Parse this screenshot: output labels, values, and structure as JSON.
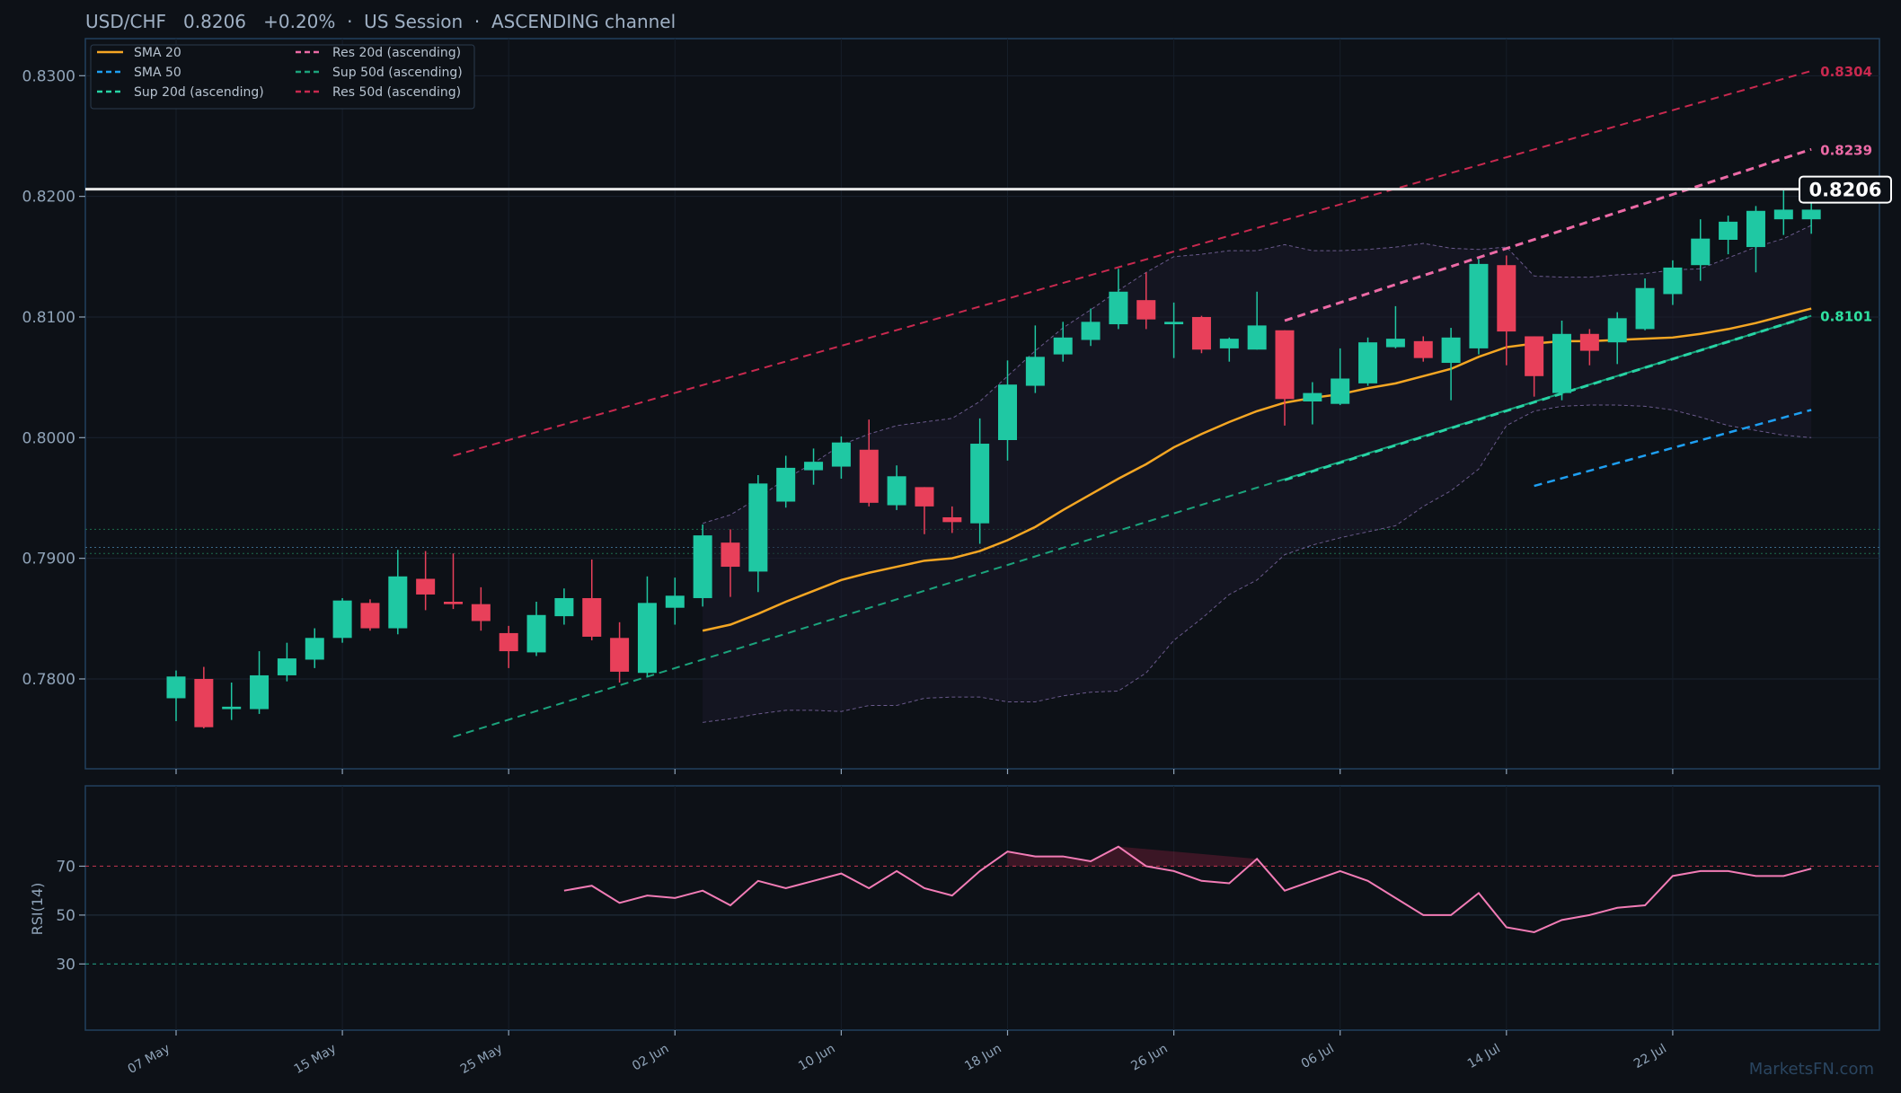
{
  "header": {
    "title": "USD/CHF   0.8206   +0.20%  ·  US Session  ·  ASCENDING channel"
  },
  "watermark": "MarketsFN.com",
  "colors": {
    "background": "#0d1117",
    "up": "#1fc8a3",
    "down": "#e8405a",
    "sma20": "#f5a623",
    "sma50": "#1e9ff2",
    "sup20": "#27d4a5",
    "res20": "#ec6aa6",
    "sup50": "#1ba37c",
    "res50": "#c8294f",
    "rsi": "#f27cb6",
    "bollinger": "#6a5a8c"
  },
  "legend": [
    {
      "label": "SMA 20",
      "style": "solid",
      "color": "#f5a623"
    },
    {
      "label": "SMA 50",
      "style": "dashed",
      "color": "#1e9ff2"
    },
    {
      "label": "Sup 20d (ascending)",
      "style": "dashed",
      "color": "#27d4a5"
    },
    {
      "label": "Res 20d (ascending)",
      "style": "dashed",
      "color": "#ec6aa6"
    },
    {
      "label": "Sup 50d (ascending)",
      "style": "dashed",
      "color": "#1ba37c"
    },
    {
      "label": "Res 50d (ascending)",
      "style": "dashed",
      "color": "#c8294f"
    }
  ],
  "chart_data": {
    "type": "candlestick",
    "symbol": "USD/CHF",
    "last_price": "0.8206",
    "change": "+0.20%",
    "x_tick_labels": [
      "07 May",
      "15 May",
      "25 May",
      "02 Jun",
      "10 Jun",
      "18 Jun",
      "26 Jun",
      "06 Jul",
      "14 Jul",
      "22 Jul"
    ],
    "y_tick_labels": [
      "0.7800",
      "0.7900",
      "0.8000",
      "0.8100",
      "0.8200",
      "0.8300"
    ],
    "ylim": [
      0.7727,
      0.8347
    ],
    "candles": [
      {
        "o": 0.7784,
        "h": 0.7807,
        "l": 0.7765,
        "c": 0.7802
      },
      {
        "o": 0.78,
        "h": 0.781,
        "l": 0.7759,
        "c": 0.776
      },
      {
        "o": 0.7775,
        "h": 0.7797,
        "l": 0.7766,
        "c": 0.7777
      },
      {
        "o": 0.7775,
        "h": 0.7823,
        "l": 0.7771,
        "c": 0.7803
      },
      {
        "o": 0.7803,
        "h": 0.783,
        "l": 0.7798,
        "c": 0.7817
      },
      {
        "o": 0.7816,
        "h": 0.7842,
        "l": 0.7809,
        "c": 0.7834
      },
      {
        "o": 0.7834,
        "h": 0.7867,
        "l": 0.783,
        "c": 0.7865
      },
      {
        "o": 0.7863,
        "h": 0.7866,
        "l": 0.784,
        "c": 0.7842
      },
      {
        "o": 0.7842,
        "h": 0.7907,
        "l": 0.7837,
        "c": 0.7885
      },
      {
        "o": 0.7883,
        "h": 0.7906,
        "l": 0.7857,
        "c": 0.787
      },
      {
        "o": 0.7864,
        "h": 0.7904,
        "l": 0.7858,
        "c": 0.7862
      },
      {
        "o": 0.7862,
        "h": 0.7876,
        "l": 0.784,
        "c": 0.7848
      },
      {
        "o": 0.7838,
        "h": 0.7844,
        "l": 0.7809,
        "c": 0.7823
      },
      {
        "o": 0.7822,
        "h": 0.7864,
        "l": 0.7819,
        "c": 0.7853
      },
      {
        "o": 0.7852,
        "h": 0.7875,
        "l": 0.7845,
        "c": 0.7867
      },
      {
        "o": 0.7867,
        "h": 0.7899,
        "l": 0.7832,
        "c": 0.7835
      },
      {
        "o": 0.7834,
        "h": 0.7847,
        "l": 0.7797,
        "c": 0.7806
      },
      {
        "o": 0.7805,
        "h": 0.7885,
        "l": 0.7802,
        "c": 0.7863
      },
      {
        "o": 0.7859,
        "h": 0.7884,
        "l": 0.7845,
        "c": 0.7869
      },
      {
        "o": 0.7867,
        "h": 0.7928,
        "l": 0.786,
        "c": 0.7919
      },
      {
        "o": 0.7913,
        "h": 0.7924,
        "l": 0.7868,
        "c": 0.7893
      },
      {
        "o": 0.7889,
        "h": 0.7969,
        "l": 0.7872,
        "c": 0.7962
      },
      {
        "o": 0.7947,
        "h": 0.7985,
        "l": 0.7942,
        "c": 0.7975
      },
      {
        "o": 0.7973,
        "h": 0.7991,
        "l": 0.7961,
        "c": 0.798
      },
      {
        "o": 0.7976,
        "h": 0.8001,
        "l": 0.7966,
        "c": 0.7996
      },
      {
        "o": 0.799,
        "h": 0.8015,
        "l": 0.7943,
        "c": 0.7946
      },
      {
        "o": 0.7944,
        "h": 0.7977,
        "l": 0.794,
        "c": 0.7968
      },
      {
        "o": 0.7959,
        "h": 0.7959,
        "l": 0.792,
        "c": 0.7943
      },
      {
        "o": 0.7934,
        "h": 0.7943,
        "l": 0.7921,
        "c": 0.793
      },
      {
        "o": 0.7929,
        "h": 0.8016,
        "l": 0.7912,
        "c": 0.7995
      },
      {
        "o": 0.7998,
        "h": 0.8064,
        "l": 0.7981,
        "c": 0.8044
      },
      {
        "o": 0.8043,
        "h": 0.8093,
        "l": 0.8037,
        "c": 0.8067
      },
      {
        "o": 0.8069,
        "h": 0.8096,
        "l": 0.8063,
        "c": 0.8083
      },
      {
        "o": 0.8081,
        "h": 0.8107,
        "l": 0.8076,
        "c": 0.8096
      },
      {
        "o": 0.8094,
        "h": 0.814,
        "l": 0.809,
        "c": 0.8121
      },
      {
        "o": 0.8114,
        "h": 0.8137,
        "l": 0.809,
        "c": 0.8098
      },
      {
        "o": 0.8094,
        "h": 0.8112,
        "l": 0.8066,
        "c": 0.8096
      },
      {
        "o": 0.81,
        "h": 0.8101,
        "l": 0.807,
        "c": 0.8073
      },
      {
        "o": 0.8074,
        "h": 0.8083,
        "l": 0.8063,
        "c": 0.8082
      },
      {
        "o": 0.8073,
        "h": 0.8121,
        "l": 0.8073,
        "c": 0.8093
      },
      {
        "o": 0.8089,
        "h": 0.8089,
        "l": 0.801,
        "c": 0.8032
      },
      {
        "o": 0.803,
        "h": 0.8046,
        "l": 0.8011,
        "c": 0.8037
      },
      {
        "o": 0.8028,
        "h": 0.8074,
        "l": 0.8027,
        "c": 0.8049
      },
      {
        "o": 0.8045,
        "h": 0.8083,
        "l": 0.8043,
        "c": 0.8079
      },
      {
        "o": 0.8075,
        "h": 0.8109,
        "l": 0.8074,
        "c": 0.8082
      },
      {
        "o": 0.808,
        "h": 0.8084,
        "l": 0.8063,
        "c": 0.8066
      },
      {
        "o": 0.8062,
        "h": 0.8091,
        "l": 0.8031,
        "c": 0.8083
      },
      {
        "o": 0.8074,
        "h": 0.8148,
        "l": 0.8069,
        "c": 0.8144
      },
      {
        "o": 0.8143,
        "h": 0.8151,
        "l": 0.806,
        "c": 0.8088
      },
      {
        "o": 0.8084,
        "h": 0.8084,
        "l": 0.8034,
        "c": 0.8051
      },
      {
        "o": 0.8037,
        "h": 0.8097,
        "l": 0.8031,
        "c": 0.8086
      },
      {
        "o": 0.8086,
        "h": 0.809,
        "l": 0.806,
        "c": 0.8072
      },
      {
        "o": 0.8079,
        "h": 0.8104,
        "l": 0.8061,
        "c": 0.8099
      },
      {
        "o": 0.809,
        "h": 0.8132,
        "l": 0.8089,
        "c": 0.8124
      },
      {
        "o": 0.8119,
        "h": 0.8147,
        "l": 0.811,
        "c": 0.8141
      },
      {
        "o": 0.8143,
        "h": 0.8181,
        "l": 0.813,
        "c": 0.8165
      },
      {
        "o": 0.8164,
        "h": 0.8184,
        "l": 0.8152,
        "c": 0.8179
      },
      {
        "o": 0.8158,
        "h": 0.8192,
        "l": 0.8137,
        "c": 0.8188
      },
      {
        "o": 0.8181,
        "h": 0.8205,
        "l": 0.8168,
        "c": 0.8189
      },
      {
        "o": 0.8181,
        "h": 0.8198,
        "l": 0.8169,
        "c": 0.8189
      }
    ],
    "sma20": {
      "start": 19,
      "values": [
        0.784,
        0.7845,
        0.7854,
        0.7864,
        0.7873,
        0.7882,
        0.7888,
        0.7893,
        0.7898,
        0.79,
        0.7906,
        0.7915,
        0.7926,
        0.794,
        0.7953,
        0.7966,
        0.7978,
        0.7992,
        0.8003,
        0.8013,
        0.8022,
        0.8029,
        0.8033,
        0.8036,
        0.8041,
        0.8045,
        0.8051,
        0.8057,
        0.8067,
        0.8075,
        0.8078,
        0.808,
        0.808,
        0.8081,
        0.8082,
        0.8083,
        0.8086,
        0.809,
        0.8095,
        0.8101,
        0.8107
      ]
    },
    "sma50": {
      "start": 49,
      "values": [
        0.796,
        0.8023
      ]
    },
    "bollinger": {
      "start": 19,
      "upper": [
        0.7929,
        0.7936,
        0.795,
        0.7966,
        0.7979,
        0.7994,
        0.8003,
        0.801,
        0.8013,
        0.8016,
        0.803,
        0.8051,
        0.8072,
        0.8091,
        0.8106,
        0.8122,
        0.8137,
        0.815,
        0.8152,
        0.8155,
        0.8155,
        0.816,
        0.8155,
        0.8155,
        0.8156,
        0.8158,
        0.8161,
        0.8157,
        0.8156,
        0.8158,
        0.8134,
        0.8133,
        0.8133,
        0.8135,
        0.8136,
        0.8139,
        0.814,
        0.8149,
        0.8158,
        0.8165,
        0.8176
      ],
      "lower": [
        0.7764,
        0.7767,
        0.7771,
        0.7774,
        0.7774,
        0.7773,
        0.7778,
        0.7778,
        0.7784,
        0.7785,
        0.7785,
        0.7781,
        0.7781,
        0.7786,
        0.7789,
        0.779,
        0.7805,
        0.7832,
        0.785,
        0.787,
        0.7882,
        0.7903,
        0.7911,
        0.7917,
        0.7922,
        0.7927,
        0.7943,
        0.7956,
        0.7974,
        0.801,
        0.8022,
        0.8026,
        0.8027,
        0.8027,
        0.8026,
        0.8023,
        0.8017,
        0.801,
        0.8006,
        0.8002,
        0.8
      ]
    },
    "levels": [
      {
        "name": "Res 50d (ascending)",
        "from": [
          10,
          0.7985
        ],
        "to": [
          59,
          0.8304
        ],
        "label": "0.8304"
      },
      {
        "name": "Sup 50d (ascending)",
        "from": [
          10,
          0.7752
        ],
        "to": [
          59,
          0.8101
        ]
      },
      {
        "name": "Res 20d (ascending)",
        "from": [
          40,
          0.8097
        ],
        "to": [
          59,
          0.8239
        ],
        "label": "0.8239"
      },
      {
        "name": "Sup 20d (ascending)",
        "from": [
          40,
          0.7965
        ],
        "to": [
          59,
          0.8101
        ],
        "label": "0.8101"
      }
    ],
    "horizontal_levels": [
      0.7924,
      0.7909,
      0.7904
    ],
    "rsi": {
      "label": "RSI(14)",
      "ticks": [
        "30",
        "50",
        "70"
      ],
      "ylim": [
        0,
        100
      ],
      "start": 14,
      "values": [
        60,
        62,
        55,
        58,
        57,
        60,
        54,
        64,
        61,
        64,
        67,
        61,
        68,
        61,
        58,
        68,
        76,
        74,
        74,
        72,
        78,
        70,
        68,
        64,
        63,
        73,
        60,
        64,
        68,
        64,
        57,
        50,
        50,
        59,
        45,
        43,
        48,
        50,
        53,
        54,
        66,
        68,
        68,
        66,
        66,
        69
      ]
    }
  }
}
